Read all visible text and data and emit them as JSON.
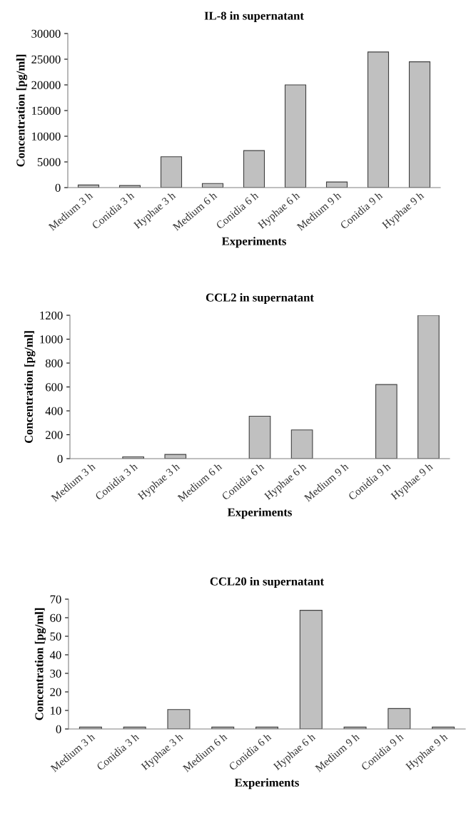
{
  "chart_data": [
    {
      "type": "bar",
      "title": "IL-8 in supernatant",
      "xlabel": "Experiments",
      "ylabel": "Concentration [pg/ml]",
      "categories": [
        "Medium 3 h",
        "Conidia 3 h",
        "Hyphae 3 h",
        "Medium 6 h",
        "Conidia 6 h",
        "Hyphae 6 h",
        "Medium 9 h",
        "Conidia 9 h",
        "Hyphae 9 h"
      ],
      "values": [
        500,
        400,
        6000,
        800,
        7200,
        20000,
        1100,
        26400,
        24500
      ],
      "color": "#c0c0c0",
      "ylim": [
        0,
        30000
      ],
      "yticks": [
        0,
        5000,
        10000,
        15000,
        20000,
        25000,
        30000
      ],
      "grid": false,
      "legend": false
    },
    {
      "type": "bar",
      "title": "CCL2 in supernatant",
      "xlabel": "Experiments",
      "ylabel": "Concentration [pg/ml]",
      "categories": [
        "Medium 3 h",
        "Conidia 3 h",
        "Hyphae 3 h",
        "Medium 6 h",
        "Conidia 6 h",
        "Hyphae 6 h",
        "Medium 9 h",
        "Conidia 9 h",
        "Hyphae 9 h"
      ],
      "values": [
        0,
        15,
        35,
        0,
        355,
        240,
        0,
        620,
        1200
      ],
      "color": "#c0c0c0",
      "ylim": [
        0,
        1200
      ],
      "yticks": [
        0,
        200,
        400,
        600,
        800,
        1000,
        1200
      ],
      "grid": false,
      "legend": false
    },
    {
      "type": "bar",
      "title": "CCL20 in supernatant",
      "xlabel": "Experiments",
      "ylabel": "Concentration [pg/ml]",
      "categories": [
        "Medium 3 h",
        "Conidia 3 h",
        "Hyphae 3 h",
        "Medium 6 h",
        "Conidia 6 h",
        "Hyphae 6 h",
        "Medium 9 h",
        "Conidia 9 h",
        "Hyphae 9 h"
      ],
      "values": [
        1,
        1,
        10.5,
        1,
        1,
        64,
        1,
        11,
        1
      ],
      "color": "#c0c0c0",
      "ylim": [
        0,
        70
      ],
      "yticks": [
        0,
        10,
        20,
        30,
        40,
        50,
        60,
        70
      ],
      "grid": false,
      "legend": false
    }
  ]
}
